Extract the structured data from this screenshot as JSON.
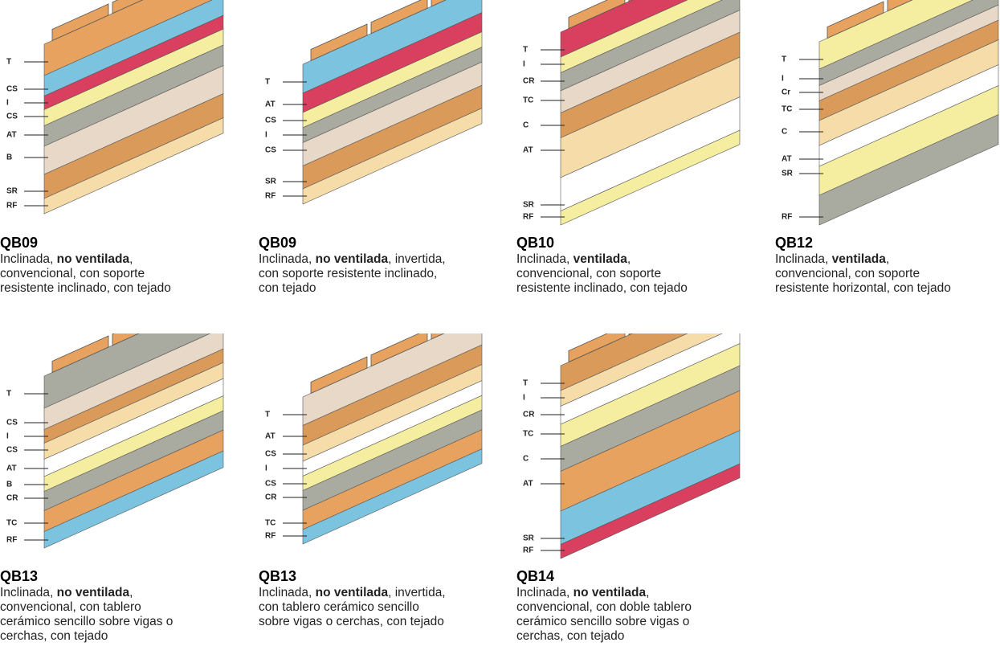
{
  "panels": [
    {
      "code": "QB09",
      "desc": {
        "before": "Inclinada, ",
        "bold": "no ventilada",
        "after": ", convencional, con soporte resistente inclinado, con tejado"
      },
      "labels": [
        "T",
        "CS",
        "I",
        "CS",
        "AT",
        "B",
        "SR",
        "RF"
      ]
    },
    {
      "code": "QB09",
      "desc": {
        "before": "Inclinada, ",
        "bold": "no ventilada",
        "after": ", invertida, con soporte resistente inclinado, con tejado"
      },
      "labels": [
        "T",
        "AT",
        "CS",
        "I",
        "CS",
        "SR",
        "RF"
      ]
    },
    {
      "code": "QB10",
      "desc": {
        "before": "Inclinada, ",
        "bold": "ventilada",
        "after": ", convencional, con soporte resistente inclinado, con tejado"
      },
      "labels": [
        "T",
        "I",
        "CR",
        "TC",
        "C",
        "AT",
        "SR",
        "RF"
      ]
    },
    {
      "code": "QB12",
      "desc": {
        "before": "Inclinada, ",
        "bold": "ventilada",
        "after": ", convencional, con soporte resistente horizontal, con tejado"
      },
      "labels": [
        "T",
        "I",
        "Cr",
        "TC",
        "C",
        "AT",
        "SR",
        "RF"
      ]
    },
    {
      "code": "QB13",
      "desc": {
        "before": "Inclinada, ",
        "bold": "no ventilada",
        "after": ", convencional, con tablero cerámico sencillo sobre vigas o cerchas, con tejado"
      },
      "labels": [
        "T",
        "CS",
        "I",
        "CS",
        "AT",
        "B",
        "CR",
        "TC",
        "RF"
      ]
    },
    {
      "code": "QB13",
      "desc": {
        "before": "Inclinada, ",
        "bold": "no ventilada",
        "after": ", invertida, con tablero cerámico sencillo sobre vigas o cerchas, con tejado"
      },
      "labels": [
        "T",
        "AT",
        "CS",
        "I",
        "CS",
        "CR",
        "TC",
        "RF"
      ]
    },
    {
      "code": "QB14",
      "desc": {
        "before": "Inclinada, ",
        "bold": "no ventilada",
        "after": ", convencional, con doble tablero cerámico sencillo sobre vigas o cerchas, con tejado"
      },
      "labels": [
        "T",
        "I",
        "CR",
        "TC",
        "C",
        "AT",
        "SR",
        "RF"
      ]
    }
  ]
}
